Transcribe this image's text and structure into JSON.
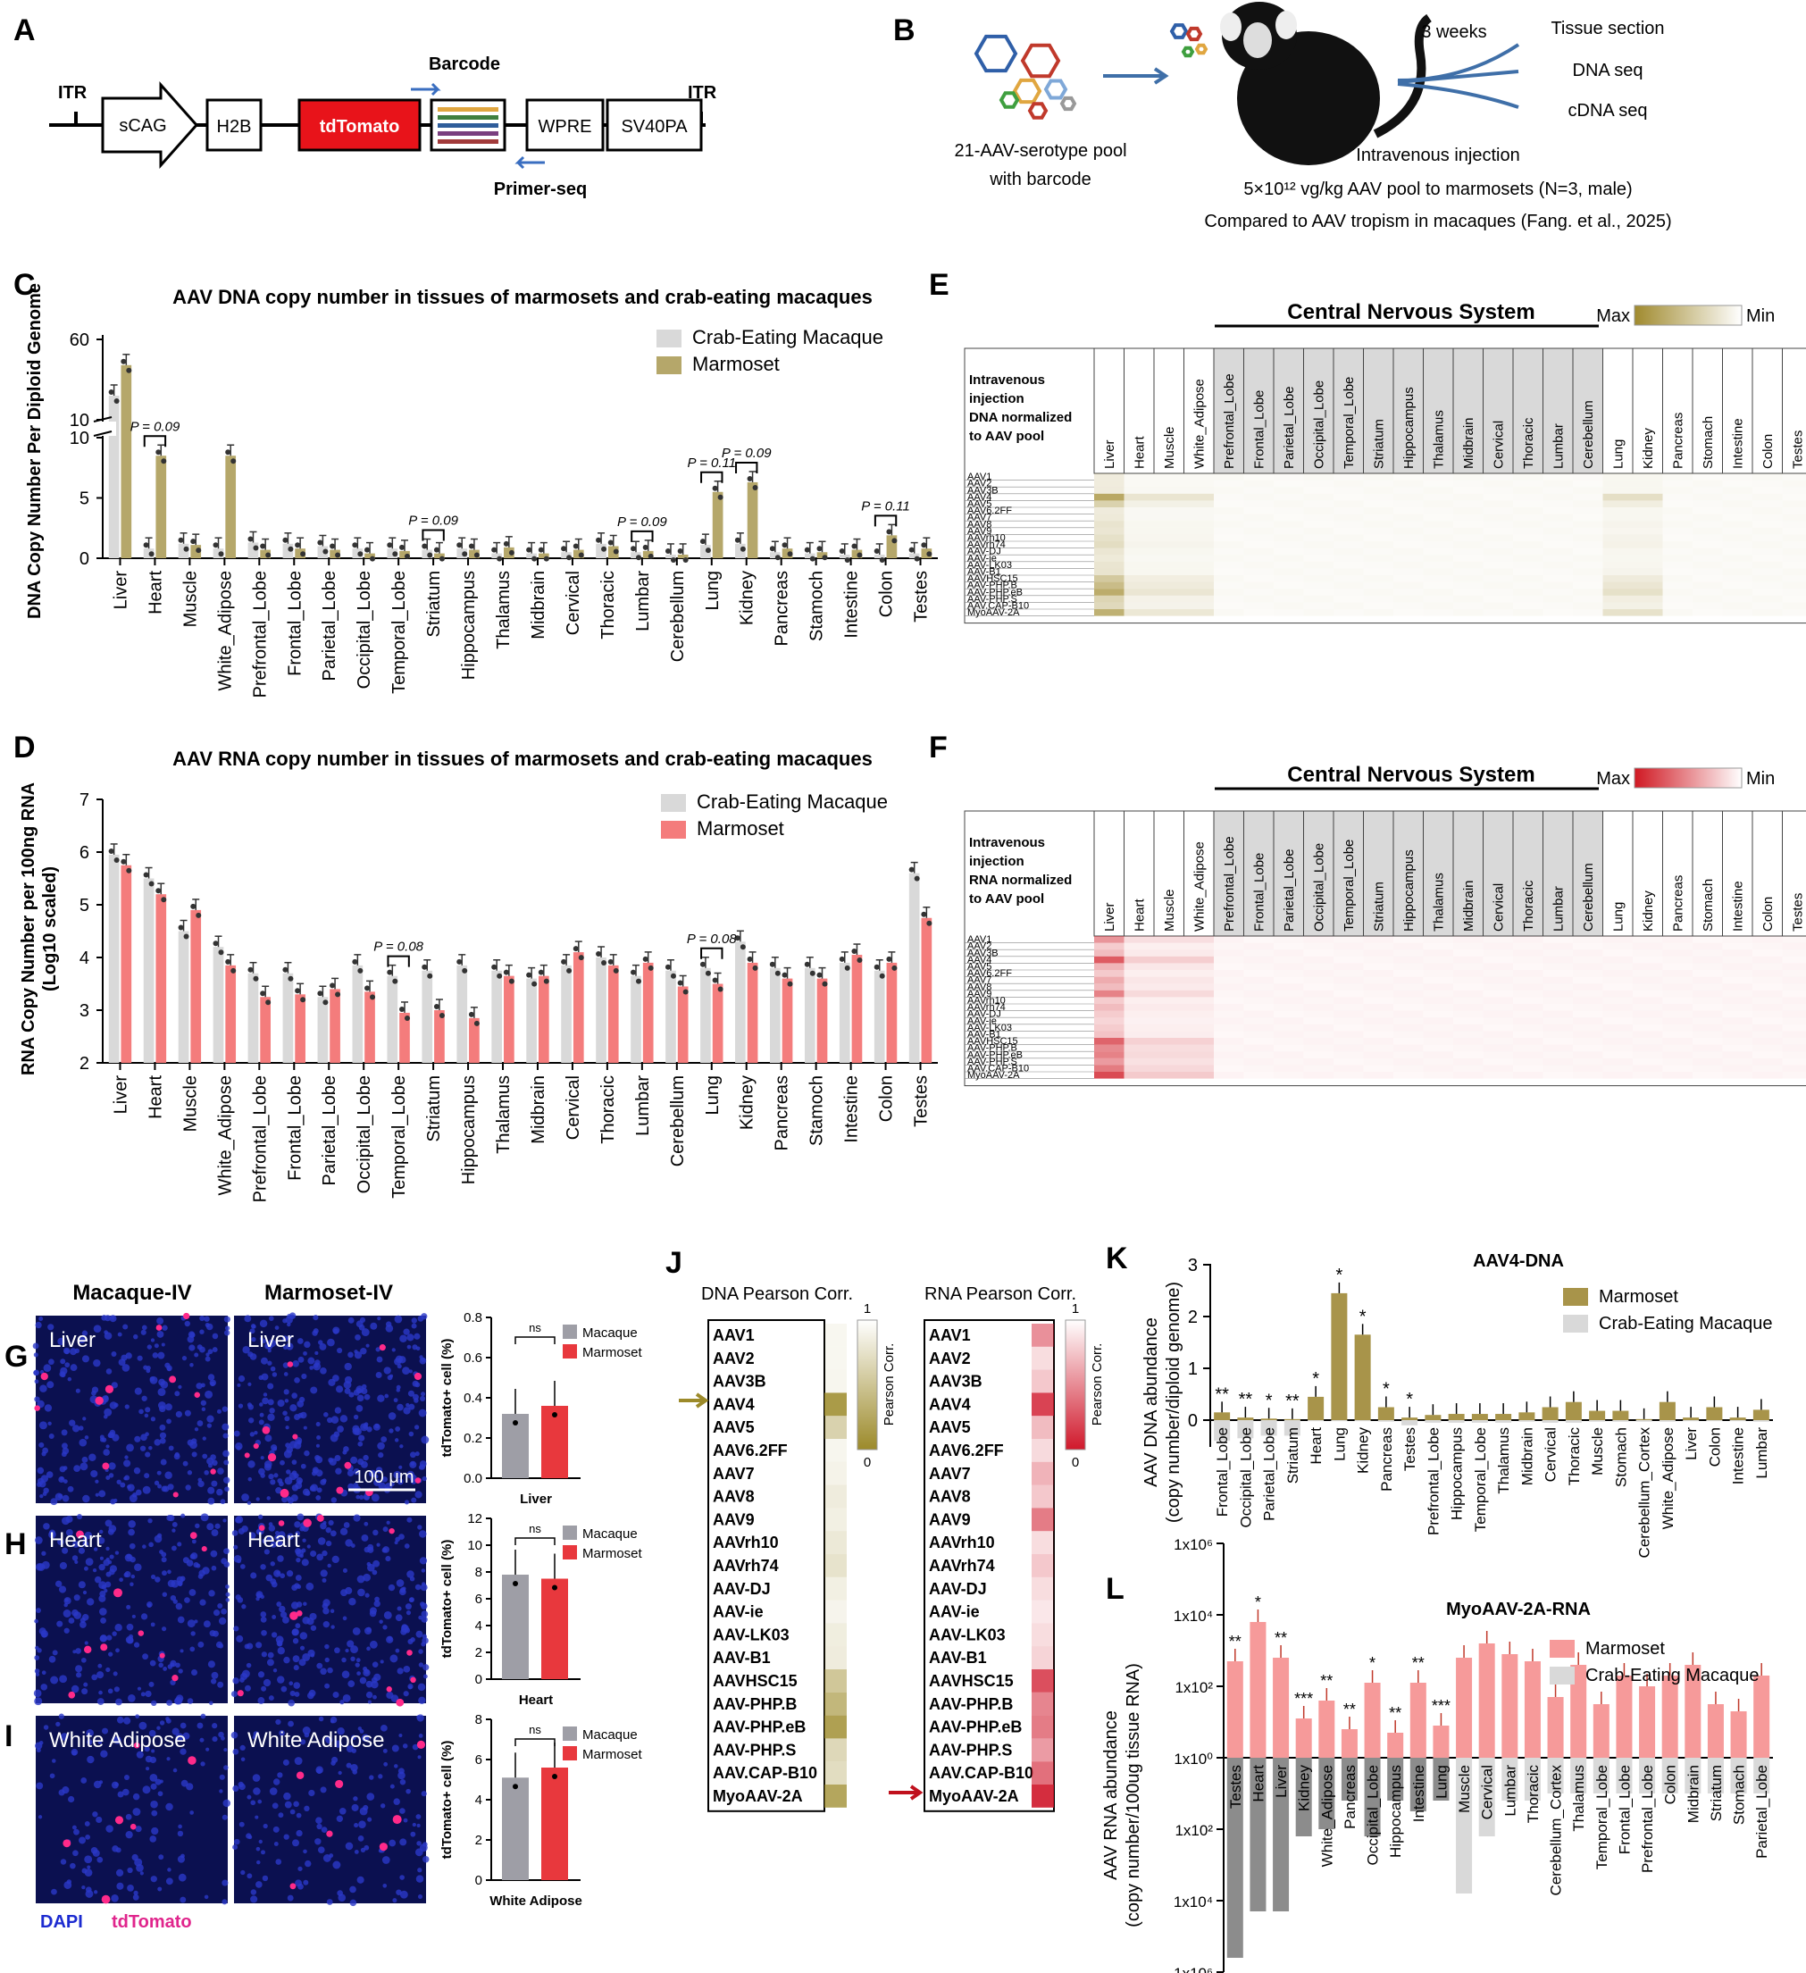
{
  "panels": {
    "A": {
      "label": "A",
      "itr_left": "ITR",
      "itr_right": "ITR",
      "elements": [
        "sCAG",
        "H2B",
        "tdTomato",
        "WPRE",
        "SV40PA"
      ],
      "barcode": "Barcode",
      "primer": "Primer-seq",
      "barcode_colors": [
        "#e0a640",
        "#3f7f3f",
        "#2f5d9a",
        "#7a3f7f",
        "#a13a3a"
      ]
    },
    "B": {
      "label": "B",
      "pool": [
        "21-AAV-serotype pool",
        "with barcode"
      ],
      "weeks": "3 weeks",
      "outputs": [
        "Tissue section",
        "DNA seq",
        "cDNA seq"
      ],
      "injection": "Intravenous injection",
      "dose": "5×10¹² vg/kg AAV pool to marmosets (N=3, male)",
      "compare": "Compared to AAV tropism in macaques (Fang. et al., 2025)"
    },
    "C": {
      "label": "C"
    },
    "D": {
      "label": "D"
    },
    "E": {
      "label": "E",
      "cns": "Central Nervous System",
      "max": "Max",
      "min": "Min",
      "desc": [
        "Intravenous",
        "injection",
        "DNA normalized",
        "to AAV pool"
      ],
      "color": "#a08a2e"
    },
    "F": {
      "label": "F",
      "cns": "Central Nervous System",
      "max": "Max",
      "min": "Min",
      "desc": [
        "Intravenous",
        "injection",
        "RNA normalized",
        "to AAV pool"
      ],
      "color": "#d01822"
    },
    "G": {
      "label": "G",
      "col1": "Macaque-IV",
      "col2": "Marmoset-IV",
      "tissue": "Liver",
      "scale": "100 μm",
      "ylabel": "tdTomato+ cell (%)",
      "xlabel": "Liver",
      "ns": "ns",
      "yticks": [
        "0.0",
        "0.2",
        "0.4",
        "0.6",
        "0.8"
      ],
      "ymax": 0.8,
      "values": [
        0.32,
        0.36
      ]
    },
    "H": {
      "label": "H",
      "tissue": "Heart",
      "ylabel": "tdTomato+ cell (%)",
      "xlabel": "Heart",
      "ns": "ns",
      "yticks": [
        "0",
        "2",
        "4",
        "6",
        "8",
        "10",
        "12"
      ],
      "ymax": 12,
      "values": [
        7.8,
        7.5
      ]
    },
    "I": {
      "label": "I",
      "tissue": "White Adipose",
      "ylabel": "tdTomato+ cell (%)",
      "xlabel": "White Adipose",
      "ns": "ns",
      "yticks": [
        "0",
        "2",
        "4",
        "6",
        "8"
      ],
      "ymax": 8,
      "values": [
        5.1,
        5.6
      ]
    },
    "GHI_legend": [
      "Macaque",
      "Marmoset"
    ],
    "stain": {
      "dapi": "DAPI",
      "td": "tdTomato"
    },
    "J": {
      "label": "J",
      "dna_title": "DNA Pearson Corr.",
      "rna_title": "RNA Pearson Corr.",
      "scale_label": "Pearson Corr.",
      "scale_max": "1",
      "scale_min": "0",
      "serotypes": [
        "AAV1",
        "AAV2",
        "AAV3B",
        "AAV4",
        "AAV5",
        "AAV6.2FF",
        "AAV7",
        "AAV8",
        "AAV9",
        "AAVrh10",
        "AAVrh74",
        "AAV-DJ",
        "AAV-ie",
        "AAV-LK03",
        "AAV-B1",
        "AAVHSC15",
        "AAV-PHP.B",
        "AAV-PHP.eB",
        "AAV-PHP.S",
        "AAV.CAP-B10",
        "MyoAAV-2A"
      ],
      "dna_corr": [
        0.02,
        0.02,
        0.03,
        0.85,
        0.35,
        0.03,
        0.05,
        0.12,
        0.08,
        0.15,
        0.2,
        0.08,
        0.04,
        0.1,
        0.12,
        0.45,
        0.6,
        0.8,
        0.3,
        0.25,
        0.75
      ],
      "rna_corr": [
        0.45,
        0.1,
        0.2,
        0.8,
        0.25,
        0.12,
        0.3,
        0.2,
        0.55,
        0.1,
        0.2,
        0.1,
        0.05,
        0.1,
        0.15,
        0.75,
        0.5,
        0.55,
        0.4,
        0.6,
        0.9
      ]
    },
    "K": {
      "label": "K"
    },
    "L": {
      "label": "L"
    }
  },
  "chart_data": [
    {
      "id": "C",
      "type": "bar",
      "title": "AAV DNA copy number in tissues of marmosets and crab-eating macaques",
      "ylabel": "DNA Copy Number Per Diploid Genome",
      "yticks_lower": [
        "0",
        "5",
        "10"
      ],
      "yticks_upper": [
        "10",
        "60"
      ],
      "axis_break": [
        10,
        10
      ],
      "categories": [
        "Liver",
        "Heart",
        "Muscle",
        "White_Adipose",
        "Prefrontal_Lobe",
        "Frontal_Lobe",
        "Parietal_Lobe",
        "Occipital_Lobe",
        "Temporal_Lobe",
        "Striatum",
        "Hippocampus",
        "Thalamus",
        "Midbrain",
        "Cervical",
        "Thoracic",
        "Lumbar",
        "Cerebellum",
        "Lung",
        "Kidney",
        "Pancreas",
        "Stamoch",
        "Intestine",
        "Colon",
        "Testes"
      ],
      "series": [
        {
          "name": "Crab-Eating Macaque",
          "color": "#d9d9d9",
          "values": [
            25,
            0.8,
            1.2,
            0.8,
            1.3,
            1.2,
            1.0,
            0.8,
            0.8,
            0.7,
            0.8,
            0.4,
            0.4,
            0.5,
            1.2,
            0.5,
            0.3,
            1.1,
            1.2,
            0.5,
            0.4,
            0.3,
            0.3,
            0.4
          ]
        },
        {
          "name": "Marmoset",
          "color": "#b5a76a",
          "values": [
            44,
            8.5,
            1.1,
            8.5,
            0.7,
            0.8,
            0.7,
            0.4,
            0.6,
            0.4,
            0.7,
            0.9,
            0.4,
            0.7,
            1.0,
            0.6,
            0.3,
            5.5,
            6.3,
            0.8,
            0.5,
            0.7,
            1.9,
            0.8
          ]
        }
      ],
      "annotations": [
        {
          "category": "Heart",
          "text": "P = 0.09"
        },
        {
          "category": "Striatum",
          "text": "P = 0.09"
        },
        {
          "category": "Lumbar",
          "text": "P = 0.09"
        },
        {
          "category": "Lung",
          "text": "P = 0.11"
        },
        {
          "category": "Kidney",
          "text": "P = 0.09"
        },
        {
          "category": "Colon",
          "text": "P = 0.11"
        }
      ]
    },
    {
      "id": "D",
      "type": "bar",
      "title": "AAV RNA copy number in tissues of marmosets and crab-eating macaques",
      "ylabel": "RNA Copy Number per 100ng RNA (Log10 scaled)",
      "ylim": [
        2,
        7
      ],
      "categories": [
        "Liver",
        "Heart",
        "Muscle",
        "White_Adipose",
        "Prefrontal_Lobe",
        "Frontal_Lobe",
        "Parietal_Lobe",
        "Occipital_Lobe",
        "Temporal_Lobe",
        "Striatum",
        "Hippocampus",
        "Thalamus",
        "Midbrain",
        "Cervical",
        "Thoracic",
        "Lumbar",
        "Cerebellum",
        "Lung",
        "Kidney",
        "Pancreas",
        "Stamoch",
        "Intestine",
        "Colon",
        "Testes"
      ],
      "series": [
        {
          "name": "Crab-Eating Macaque",
          "color": "#d9d9d9",
          "values": [
            5.95,
            5.5,
            4.5,
            4.2,
            3.7,
            3.7,
            3.25,
            3.85,
            3.65,
            3.75,
            3.85,
            3.75,
            3.6,
            3.85,
            4.0,
            3.65,
            3.75,
            3.8,
            4.3,
            3.8,
            3.8,
            3.9,
            3.75,
            5.6
          ]
        },
        {
          "name": "Marmoset",
          "color": "#f47c7c",
          "values": [
            5.75,
            5.2,
            4.9,
            3.85,
            3.25,
            3.3,
            3.4,
            3.35,
            2.95,
            3.0,
            2.85,
            3.65,
            3.65,
            4.1,
            3.85,
            3.9,
            3.45,
            3.5,
            3.9,
            3.6,
            3.6,
            4.05,
            3.9,
            4.75
          ]
        }
      ],
      "annotations": [
        {
          "category": "Temporal_Lobe",
          "text": "P = 0.08"
        },
        {
          "category": "Lung",
          "text": "P = 0.08"
        }
      ]
    },
    {
      "id": "K",
      "type": "bar",
      "title": "AAV4-DNA",
      "ylabel": "AAV DNA abundance (copy number/diploid genome)",
      "ylim": [
        -0.5,
        3
      ],
      "yticks": [
        "0",
        "1",
        "2",
        "3"
      ],
      "categories": [
        "Frontal_Lobe",
        "Occipital_Lobe",
        "Parietal_Lobe",
        "Striatum",
        "Heart",
        "Lung",
        "Kidney",
        "Pancreas",
        "Testes",
        "Prefrontal_Lobe",
        "Hippocampus",
        "Temporal_Lobe",
        "Thalamus",
        "Midbrain",
        "Cervical",
        "Thoracic",
        "Muscle",
        "Stomach",
        "Cerebellum_Cortex",
        "White_Adipose",
        "Liver",
        "Colon",
        "Intestine",
        "Lumbar"
      ],
      "series": [
        {
          "name": "Marmoset",
          "color": "#a8944a",
          "values": [
            0.15,
            0.05,
            0.03,
            0.02,
            0.45,
            2.45,
            1.65,
            0.25,
            0.05,
            0.1,
            0.12,
            0.12,
            0.12,
            0.15,
            0.25,
            0.35,
            0.18,
            0.18,
            0.02,
            0.35,
            0.05,
            0.25,
            0.05,
            0.2
          ]
        },
        {
          "name": "Crab-Eating Macaque",
          "color": "#d9d9d9",
          "values": [
            -0.4,
            -0.35,
            -0.3,
            -0.3,
            -0.02,
            -0.02,
            -0.02,
            -0.03,
            -0.1,
            -0.05,
            -0.05,
            -0.05,
            -0.05,
            -0.03,
            -0.05,
            -0.05,
            -0.03,
            -0.03,
            -0.03,
            -0.03,
            -0.02,
            -0.02,
            -0.02,
            -0.03
          ]
        }
      ],
      "significance": [
        "**",
        "**",
        "*",
        "**",
        "*",
        "*",
        "*",
        "*",
        "*",
        "",
        "",
        "",
        "",
        "",
        "",
        "",
        "",
        "",
        "",
        "",
        "",
        "",
        "",
        ""
      ],
      "legend": [
        "Marmoset",
        "Crab-Eating Macaque"
      ]
    },
    {
      "id": "L",
      "type": "bar",
      "title": "MyoAAV-2A-RNA",
      "ylabel": "AAV RNA abundance (copy number/100ug tissue RNA)",
      "yticks": [
        "1x10⁶",
        "1x10⁴",
        "1x10²",
        "1x10⁰",
        "1x10²",
        "1x10⁴",
        "1x10⁶"
      ],
      "categories": [
        "Testes",
        "Heart",
        "Liver",
        "Kidney",
        "White_Adipose",
        "Pancreas",
        "Occipital_Lobe",
        "Hippocampus",
        "Intestine",
        "Lung",
        "Muscle",
        "Cervical",
        "Lumbar",
        "Thoracic",
        "Cerebellum_Cortex",
        "Thalamus",
        "Temporal_Lobe",
        "Frontal_Lobe",
        "Prefrontal_Lobe",
        "Colon",
        "Midbrain",
        "Striatum",
        "Stomach",
        "Parietal_Lobe"
      ],
      "series": [
        {
          "name": "Marmoset",
          "color": "#f69a9a",
          "log10_values": [
            2.7,
            3.8,
            2.8,
            1.1,
            1.6,
            0.8,
            2.1,
            0.7,
            2.1,
            0.9,
            2.8,
            3.2,
            2.9,
            2.7,
            1.7,
            2.6,
            1.5,
            2.3,
            2.0,
            2.3,
            2.6,
            1.5,
            1.3,
            2.3
          ]
        },
        {
          "name": "Crab-Eating Macaque",
          "color": "#d9d9d9",
          "log10_values": [
            5.6,
            4.3,
            4.3,
            2.2,
            2.0,
            1.2,
            2.2,
            1.2,
            1.5,
            1.2,
            3.8,
            2.2,
            1.2,
            1.2,
            1.0,
            1.0,
            1.0,
            1.0,
            1.0,
            1.0,
            1.0,
            1.0,
            1.0,
            1.0
          ]
        }
      ],
      "significance": [
        "**",
        "*",
        "**",
        "***",
        "**",
        "**",
        "*",
        "**",
        "**",
        "***",
        "",
        "",
        "",
        "",
        "",
        "",
        "",
        "",
        "",
        "",
        "",
        "",
        "",
        ""
      ],
      "legend": [
        "Marmoset",
        "Crab-Eating Macaque"
      ]
    }
  ]
}
